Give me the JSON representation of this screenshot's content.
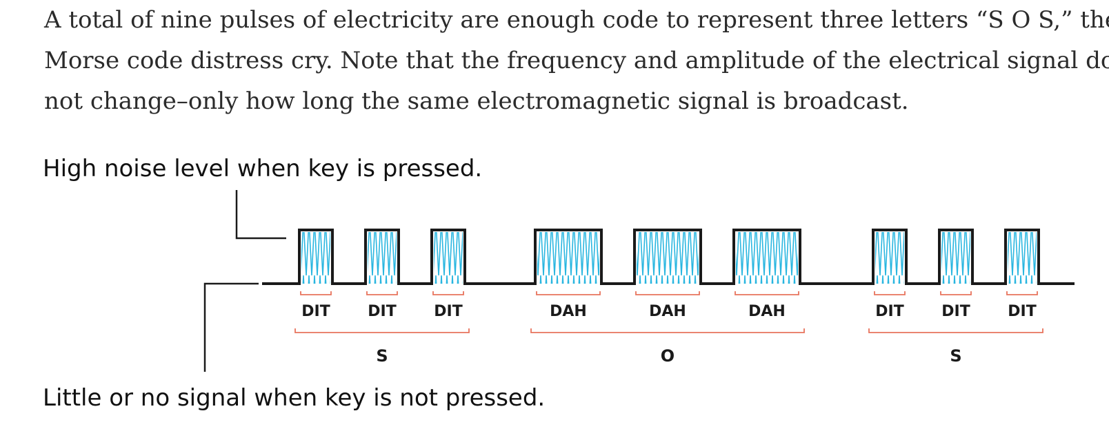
{
  "paragraph": {
    "lines": [
      "A total of nine pulses of electricity are enough code to represent three letters “S O S,” the",
      "Morse code distress cry. Note that the frequency and amplitude of the electrical signal does",
      "not change–only how long the same electromagnetic signal is broadcast."
    ]
  },
  "diagram": {
    "high_label": "High noise level when key is pressed.",
    "low_label": "Little or no signal when key is not pressed.",
    "colors": {
      "signal": "#1a1a1a",
      "fill": "#29b6e0",
      "bracket": "#e8735c"
    },
    "groups": [
      {
        "letter": "S",
        "pulses": [
          "DIT",
          "DIT",
          "DIT"
        ]
      },
      {
        "letter": "O",
        "pulses": [
          "DAH",
          "DAH",
          "DAH"
        ]
      },
      {
        "letter": "S",
        "pulses": [
          "DIT",
          "DIT",
          "DIT"
        ]
      }
    ]
  }
}
